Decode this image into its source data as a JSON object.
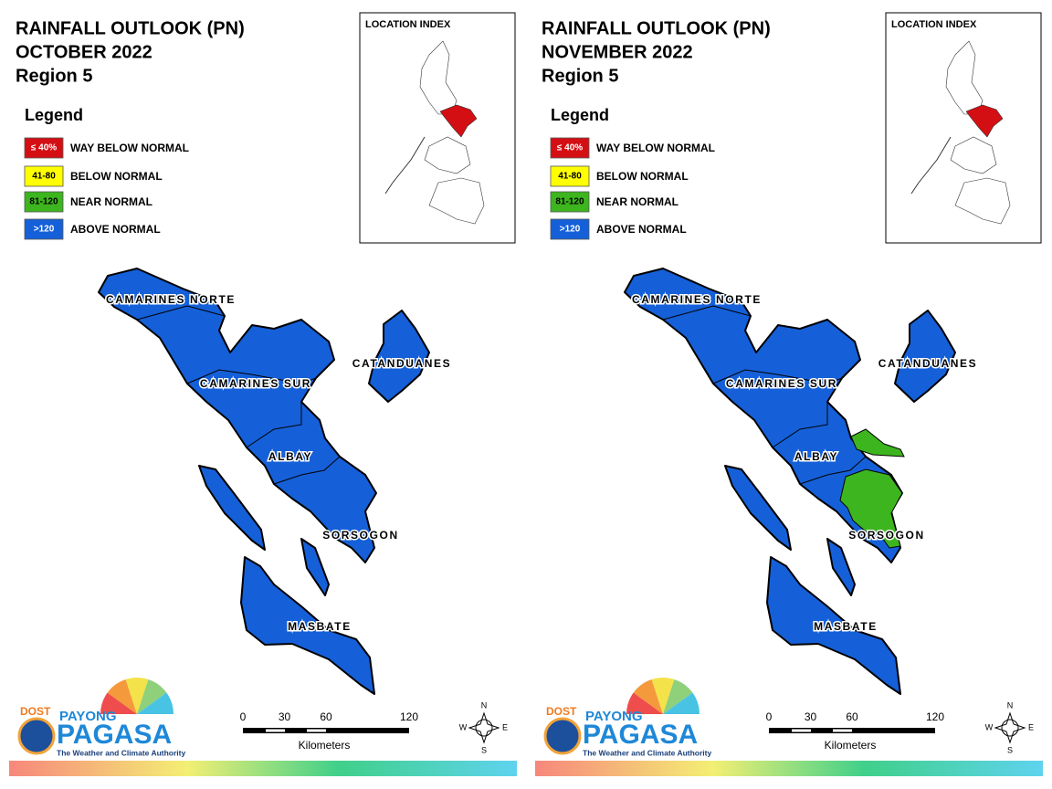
{
  "panels": [
    {
      "title": [
        "RAINFALL OUTLOOK (PN)",
        "OCTOBER 2022",
        "Region 5"
      ],
      "legend": {
        "title": "Legend",
        "items": [
          {
            "swatch": "≤ 40%",
            "label": "WAY BELOW NORMAL",
            "color": "#d40f14",
            "text_color": "#ffffff"
          },
          {
            "swatch": "41-80",
            "label": "BELOW NORMAL",
            "color": "#ffff00",
            "text_color": "#000000"
          },
          {
            "swatch": "81-120",
            "label": "NEAR NORMAL",
            "color": "#3db51e",
            "text_color": "#000000"
          },
          {
            "swatch": ">120",
            "label": "ABOVE NORMAL",
            "color": "#1560d8",
            "text_color": "#ffffff"
          }
        ]
      },
      "location_index": "LOCATION INDEX",
      "provinces": [
        "CAMARINES NORTE",
        "CATANDUANES",
        "CAMARINES SUR",
        "ALBAY",
        "SORSOGON",
        "MASBATE"
      ],
      "scale": {
        "ticks": [
          0,
          30,
          60,
          120
        ],
        "unit": "Kilometers"
      },
      "compass": [
        "N",
        "E",
        "S",
        "W"
      ],
      "logo": {
        "agency": "DOST",
        "line1": "PAYONG",
        "line2": "PAGASA",
        "tagline": "The Weather and Climate Authority"
      }
    },
    {
      "title": [
        "RAINFALL OUTLOOK (PN)",
        "NOVEMBER 2022",
        "Region 5"
      ],
      "legend": {
        "title": "Legend",
        "items": [
          {
            "swatch": "≤ 40%",
            "label": "WAY BELOW NORMAL",
            "color": "#d40f14",
            "text_color": "#ffffff"
          },
          {
            "swatch": "41-80",
            "label": "BELOW NORMAL",
            "color": "#ffff00",
            "text_color": "#000000"
          },
          {
            "swatch": "81-120",
            "label": "NEAR NORMAL",
            "color": "#3db51e",
            "text_color": "#000000"
          },
          {
            "swatch": ">120",
            "label": "ABOVE NORMAL",
            "color": "#1560d8",
            "text_color": "#ffffff"
          }
        ]
      },
      "location_index": "LOCATION INDEX",
      "provinces": [
        "CAMARINES NORTE",
        "CATANDUANES",
        "CAMARINES SUR",
        "ALBAY",
        "SORSOGON",
        "MASBATE"
      ],
      "scale": {
        "ticks": [
          0,
          30,
          60,
          120
        ],
        "unit": "Kilometers"
      },
      "compass": [
        "N",
        "E",
        "S",
        "W"
      ],
      "logo": {
        "agency": "DOST",
        "line1": "PAYONG",
        "line2": "PAGASA",
        "tagline": "The Weather and Climate Authority"
      }
    }
  ]
}
